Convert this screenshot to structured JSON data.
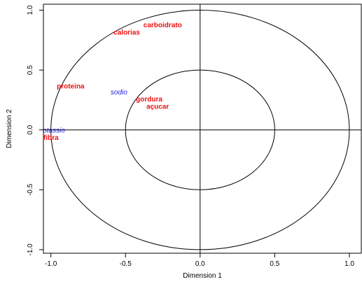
{
  "chart_data": {
    "type": "scatter",
    "title": "",
    "xlabel": "Dimension 1",
    "ylabel": "Dimension 2",
    "xlim": [
      -1.05,
      1.08
    ],
    "ylim": [
      -1.03,
      1.05
    ],
    "x_ticks": [
      -1.0,
      -0.5,
      0.0,
      0.5,
      1.0
    ],
    "x_tick_labels": [
      "-1.0",
      "-0.5",
      "0.0",
      "0.5",
      "1.0"
    ],
    "y_ticks": [
      -1.0,
      -0.5,
      0.0,
      0.5,
      1.0
    ],
    "y_tick_labels": [
      "-1.0",
      "-0.5",
      "0.0",
      "0.5",
      "1.0"
    ],
    "circles": [
      {
        "radius": 1.0
      },
      {
        "radius": 0.5
      }
    ],
    "reference_lines": {
      "x": 0,
      "y": 0
    },
    "grid": false,
    "legend": "none",
    "colors": {
      "active": "#ee1111",
      "supplementary": "#2222dd"
    },
    "points": [
      {
        "label": "carboidrato",
        "x": -0.38,
        "y": 0.88,
        "group": "active"
      },
      {
        "label": "calorias",
        "x": -0.58,
        "y": 0.82,
        "group": "active"
      },
      {
        "label": "proteina",
        "x": -0.96,
        "y": 0.37,
        "group": "active"
      },
      {
        "label": "sodio",
        "x": -0.6,
        "y": 0.32,
        "group": "supplementary"
      },
      {
        "label": "gordura",
        "x": -0.43,
        "y": 0.26,
        "group": "active"
      },
      {
        "label": "açucar",
        "x": -0.36,
        "y": 0.2,
        "group": "active"
      },
      {
        "label": "potassio",
        "x": -1.08,
        "y": 0.0,
        "group": "supplementary"
      },
      {
        "label": "fibra",
        "x": -1.05,
        "y": -0.06,
        "group": "active"
      }
    ]
  }
}
